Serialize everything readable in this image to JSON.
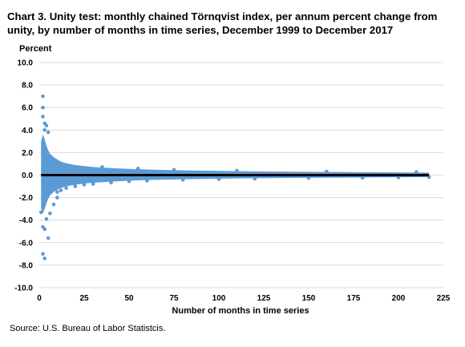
{
  "chart_data": {
    "type": "scatter",
    "title": "Chart 3. Unity test: monthly chained Törnqvist index, per annum percent change from unity, by number of months in time series, December 1999 to December 2017",
    "ylabel": "Percent",
    "xlabel": "Number of months in time series",
    "source": "Source: U.S. Bureau of Labor Statistcis.",
    "xlim": [
      0,
      225
    ],
    "ylim": [
      -10,
      10
    ],
    "xticks": [
      0,
      25,
      50,
      75,
      100,
      125,
      150,
      175,
      200,
      225
    ],
    "yticks": [
      10,
      8,
      6,
      4,
      2,
      0,
      -2,
      -4,
      -6,
      -8,
      -10
    ],
    "ytick_labels": [
      "10.0",
      "8.0",
      "6.0",
      "4.0",
      "2.0",
      "0.0",
      "-2.0",
      "-4.0",
      "-6.0",
      "-8.0",
      "-10.0"
    ],
    "grid": true,
    "colors": {
      "points": "#5b9bd5",
      "zero_line": "#000000",
      "grid": "#d9d9d9"
    },
    "envelope": {
      "x": [
        1,
        2,
        3,
        4,
        5,
        6,
        8,
        10,
        12,
        15,
        20,
        25,
        30,
        40,
        50,
        60,
        80,
        100,
        120,
        150,
        180,
        200,
        217
      ],
      "upper": [
        3.0,
        3.6,
        3.2,
        2.6,
        2.2,
        1.9,
        1.6,
        1.4,
        1.2,
        1.05,
        0.9,
        0.8,
        0.72,
        0.62,
        0.55,
        0.5,
        0.42,
        0.37,
        0.33,
        0.29,
        0.26,
        0.24,
        0.22
      ],
      "lower": [
        -3.0,
        -3.4,
        -3.0,
        -2.5,
        -2.1,
        -1.8,
        -1.5,
        -1.3,
        -1.15,
        -1.0,
        -0.85,
        -0.75,
        -0.68,
        -0.58,
        -0.5,
        -0.44,
        -0.37,
        -0.32,
        -0.28,
        -0.24,
        -0.21,
        -0.19,
        -0.17
      ]
    },
    "outliers": [
      {
        "x": 2,
        "y": 7.0
      },
      {
        "x": 2,
        "y": 6.0
      },
      {
        "x": 2,
        "y": 5.2
      },
      {
        "x": 3,
        "y": 4.6
      },
      {
        "x": 3,
        "y": 4.0
      },
      {
        "x": 2,
        "y": -7.0
      },
      {
        "x": 3,
        "y": -7.4
      },
      {
        "x": 3,
        "y": -4.8
      },
      {
        "x": 5,
        "y": -5.6
      },
      {
        "x": 2,
        "y": -4.6
      },
      {
        "x": 6,
        "y": -3.4
      },
      {
        "x": 4,
        "y": -3.9
      },
      {
        "x": 1,
        "y": -3.3
      },
      {
        "x": 8,
        "y": -2.6
      },
      {
        "x": 10,
        "y": -2.0
      },
      {
        "x": 5,
        "y": 3.8
      },
      {
        "x": 4,
        "y": 4.4
      }
    ],
    "sample_points": [
      {
        "x": 10,
        "y": -1.5
      },
      {
        "x": 12,
        "y": -1.35
      },
      {
        "x": 15,
        "y": -1.15
      },
      {
        "x": 20,
        "y": -1.0
      },
      {
        "x": 25,
        "y": -0.85
      },
      {
        "x": 30,
        "y": -0.78
      },
      {
        "x": 40,
        "y": -0.66
      },
      {
        "x": 50,
        "y": -0.55
      },
      {
        "x": 60,
        "y": -0.5
      },
      {
        "x": 80,
        "y": -0.42
      },
      {
        "x": 100,
        "y": -0.36
      },
      {
        "x": 120,
        "y": -0.32
      },
      {
        "x": 150,
        "y": -0.27
      },
      {
        "x": 180,
        "y": -0.24
      },
      {
        "x": 200,
        "y": -0.21
      },
      {
        "x": 217,
        "y": -0.18
      },
      {
        "x": 35,
        "y": 0.72
      },
      {
        "x": 55,
        "y": 0.58
      },
      {
        "x": 75,
        "y": 0.48
      },
      {
        "x": 110,
        "y": 0.4
      },
      {
        "x": 160,
        "y": 0.32
      },
      {
        "x": 210,
        "y": 0.28
      }
    ],
    "zero_line": {
      "x": [
        1,
        217
      ],
      "y": 0
    }
  }
}
